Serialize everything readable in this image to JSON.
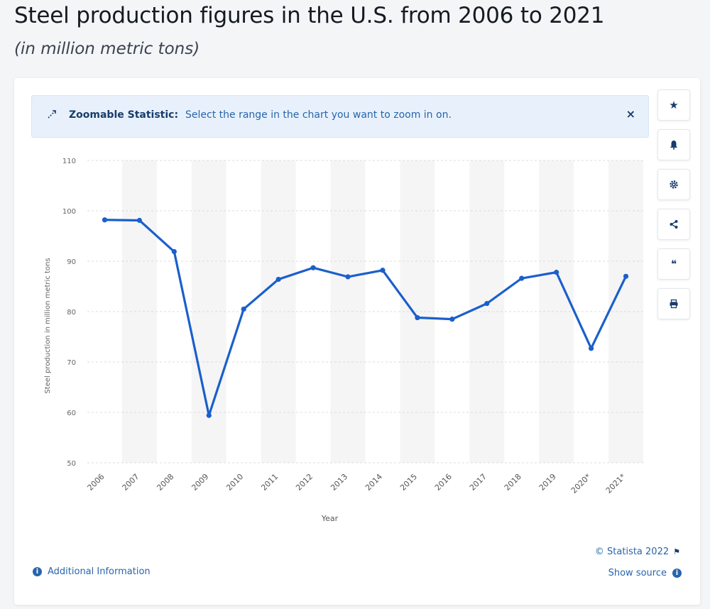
{
  "header": {
    "title": "Steel production figures in the U.S. from 2006 to 2021",
    "subtitle": "(in million metric tons)"
  },
  "banner": {
    "strong": "Zoomable Statistic:",
    "text": "Select the range in the chart you want to zoom in on.",
    "close": "×",
    "icon": "zoom-icon"
  },
  "toolbar": {
    "buttons": [
      {
        "name": "favorite-button",
        "icon": "star-icon",
        "glyph": "★"
      },
      {
        "name": "notification-button",
        "icon": "bell-icon",
        "glyph": "🔔"
      },
      {
        "name": "settings-button",
        "icon": "gear-icon",
        "glyph": "⚙"
      },
      {
        "name": "share-button",
        "icon": "share-icon",
        "glyph": "⋖"
      },
      {
        "name": "cite-button",
        "icon": "quote-icon",
        "glyph": "❝"
      },
      {
        "name": "print-button",
        "icon": "printer-icon",
        "glyph": "⎙"
      }
    ]
  },
  "footer": {
    "copyright": "© Statista 2022",
    "additional_info": "Additional Information",
    "show_source": "Show source"
  },
  "colors": {
    "line": "#1a5fcc",
    "banner_bg": "#e8f1fb",
    "accent": "#2765ad",
    "band": "#f5f5f5",
    "grid": "#dcdcdc"
  },
  "chart_data": {
    "type": "line",
    "title": "",
    "xlabel": "Year",
    "ylabel": "Steel production in million metric tons",
    "categories": [
      "2006",
      "2007",
      "2008",
      "2009",
      "2010",
      "2011",
      "2012",
      "2013",
      "2014",
      "2015",
      "2016",
      "2017",
      "2018",
      "2019",
      "2020*",
      "2021*"
    ],
    "series": [
      {
        "values": [
          98.2,
          98.1,
          91.9,
          59.4,
          80.5,
          86.4,
          88.7,
          86.9,
          88.2,
          78.8,
          78.5,
          81.6,
          86.6,
          87.8,
          72.7,
          87.0
        ]
      }
    ],
    "ylim": [
      50,
      110
    ],
    "yticks": [
      50,
      60,
      70,
      80,
      90,
      100,
      110
    ],
    "grid": true,
    "legend": "none"
  }
}
